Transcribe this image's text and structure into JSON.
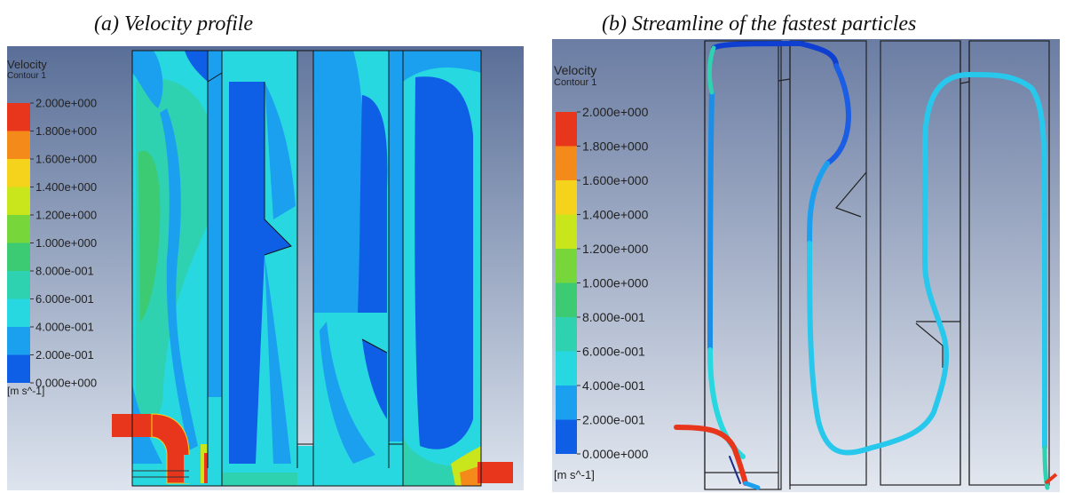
{
  "panel_a": {
    "caption": "(a)  Velocity profile",
    "legend": {
      "title": "Velocity",
      "subtitle": "Contour 1",
      "unit": "[m s^-1]",
      "levels": [
        "2.000e+000",
        "1.800e+000",
        "1.600e+000",
        "1.400e+000",
        "1.200e+000",
        "1.000e+000",
        "8.000e-001",
        "6.000e-001",
        "4.000e-001",
        "2.000e-001",
        "0.000e+000"
      ],
      "colors": [
        "#e8361c",
        "#f38a1a",
        "#f5d21c",
        "#c9e51b",
        "#77d63a",
        "#3ccb72",
        "#2ed1b0",
        "#28d8e0",
        "#1ba0f0",
        "#0f5ee6"
      ]
    }
  },
  "panel_b": {
    "caption": "(b) Streamline of the fastest particles",
    "legend": {
      "title": "Velocity",
      "subtitle": "Contour 1",
      "unit": "[m s^-1]",
      "levels": [
        "2.000e+000",
        "1.800e+000",
        "1.600e+000",
        "1.400e+000",
        "1.200e+000",
        "1.000e+000",
        "8.000e-001",
        "6.000e-001",
        "4.000e-001",
        "2.000e-001",
        "0.000e+000"
      ],
      "colors": [
        "#e8361c",
        "#f38a1a",
        "#f5d21c",
        "#c9e51b",
        "#77d63a",
        "#3ccb72",
        "#2ed1b0",
        "#28d8e0",
        "#1ba0f0",
        "#0f5ee6"
      ]
    }
  }
}
